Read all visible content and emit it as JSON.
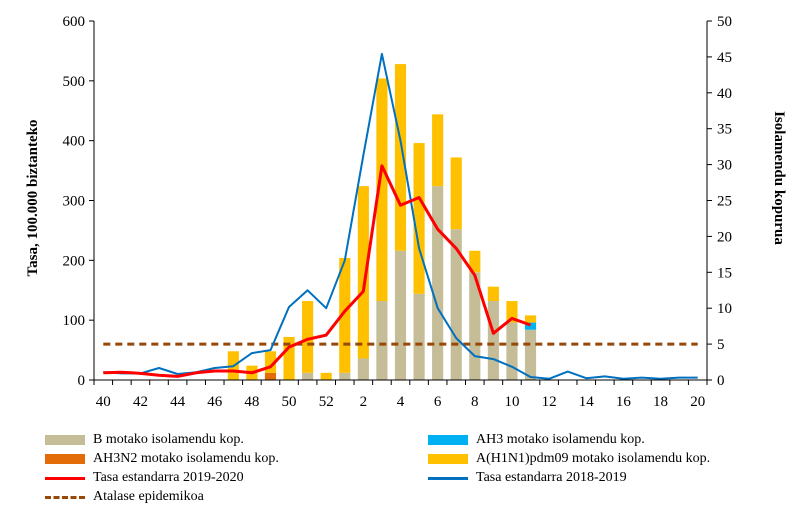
{
  "chart_data": {
    "type": "bar+line",
    "categories": [
      "40",
      "41",
      "42",
      "43",
      "44",
      "45",
      "46",
      "47",
      "48",
      "49",
      "50",
      "51",
      "52",
      "1",
      "2",
      "3",
      "4",
      "5",
      "6",
      "7",
      "8",
      "9",
      "10",
      "11",
      "12",
      "13",
      "14",
      "15",
      "16",
      "17",
      "18",
      "19",
      "20"
    ],
    "x_tick_labels": [
      "40",
      "42",
      "44",
      "46",
      "48",
      "50",
      "52",
      "2",
      "4",
      "6",
      "8",
      "10",
      "12",
      "14",
      "16",
      "18",
      "20"
    ],
    "ylabel_left": "Tasa, 100.000 biztanteko",
    "ylabel_right": "Isolamendu kopurua",
    "ylim_left": [
      0,
      600
    ],
    "ylim_right": [
      0,
      50
    ],
    "yticks_left": [
      "0",
      "100",
      "200",
      "300",
      "400",
      "500",
      "600"
    ],
    "yticks_right": [
      "0",
      "5",
      "10",
      "15",
      "20",
      "25",
      "30",
      "35",
      "40",
      "45",
      "50"
    ],
    "bar_series": [
      {
        "name": "B motako isolamendu kop.",
        "color": "#c4bd97",
        "values": [
          0,
          0,
          0,
          0,
          0,
          0,
          0,
          0,
          0,
          0,
          0,
          1,
          0,
          1,
          3,
          11,
          18,
          12,
          27,
          21,
          15,
          11,
          8,
          7,
          0,
          0,
          0,
          0,
          0,
          0,
          0,
          0,
          0
        ]
      },
      {
        "name": "AH3 motako isolamendu kop.",
        "color": "#00b0f0",
        "values": [
          0,
          0,
          0,
          0,
          0,
          0,
          0,
          0,
          0,
          0,
          0,
          0,
          0,
          0,
          0,
          0,
          0,
          0,
          0,
          0,
          0,
          0,
          0,
          1,
          0,
          0,
          0,
          0,
          0,
          0,
          0,
          0,
          0
        ]
      },
      {
        "name": "AH3N2 motako isolamendu kop.",
        "color": "#e36c09",
        "values": [
          0,
          0,
          0,
          0,
          0,
          0,
          0,
          0,
          0,
          1,
          0,
          0,
          0,
          0,
          0,
          0,
          0,
          0,
          0,
          0,
          0,
          0,
          0,
          0,
          0,
          0,
          0,
          0,
          0,
          0,
          0,
          0,
          0
        ]
      },
      {
        "name": "A(H1N1)pdm09  motako isolamendu kop.",
        "color": "#ffc000",
        "values": [
          0,
          0,
          0,
          0,
          0,
          0,
          0,
          4,
          2,
          3,
          6,
          10,
          1,
          16,
          24,
          31,
          26,
          21,
          10,
          10,
          3,
          2,
          3,
          1,
          0,
          0,
          0,
          0,
          0,
          0,
          0,
          0,
          0
        ]
      }
    ],
    "line_series": [
      {
        "name": "Tasa estandarra 2019-2020",
        "color": "#ff0000",
        "axis": "left",
        "values": [
          12,
          13,
          11,
          8,
          6,
          12,
          15,
          15,
          12,
          22,
          55,
          68,
          75,
          115,
          148,
          358,
          292,
          305,
          252,
          220,
          175,
          78,
          103,
          92
        ]
      },
      {
        "name": "Tasa estandarra 2018-2019",
        "color": "#0070c0",
        "axis": "left",
        "values": [
          13,
          11,
          11,
          20,
          10,
          13,
          20,
          23,
          45,
          50,
          122,
          150,
          120,
          200,
          375,
          545,
          400,
          220,
          120,
          70,
          40,
          35,
          22,
          5,
          2,
          14,
          3,
          6,
          2,
          4,
          2,
          4,
          4
        ]
      },
      {
        "name": "Atalase epidemikoa",
        "color": "#984807",
        "axis": "left",
        "dashed": true,
        "values": [
          60,
          60,
          60,
          60,
          60,
          60,
          60,
          60,
          60,
          60,
          60,
          60,
          60,
          60,
          60,
          60,
          60,
          60,
          60,
          60,
          60,
          60,
          60,
          60,
          60,
          60,
          60,
          60,
          60,
          60,
          60,
          60,
          60
        ]
      }
    ],
    "legend": {
      "position": "bottom",
      "items": [
        {
          "label": "B motako isolamendu kop.",
          "kind": "box",
          "color": "#c4bd97"
        },
        {
          "label": "AH3 motako isolamendu kop.",
          "kind": "box",
          "color": "#00b0f0"
        },
        {
          "label": "AH3N2 motako isolamendu kop.",
          "kind": "box",
          "color": "#e36c09"
        },
        {
          "label": "A(H1N1)pdm09  motako isolamendu kop.",
          "kind": "box",
          "color": "#ffc000"
        },
        {
          "label": "Tasa estandarra 2019-2020",
          "kind": "line",
          "color": "#ff0000"
        },
        {
          "label": "Tasa estandarra 2018-2019",
          "kind": "line",
          "color": "#0070c0"
        },
        {
          "label": "Atalase epidemikoa",
          "kind": "dash",
          "color": "#984807"
        }
      ]
    }
  }
}
